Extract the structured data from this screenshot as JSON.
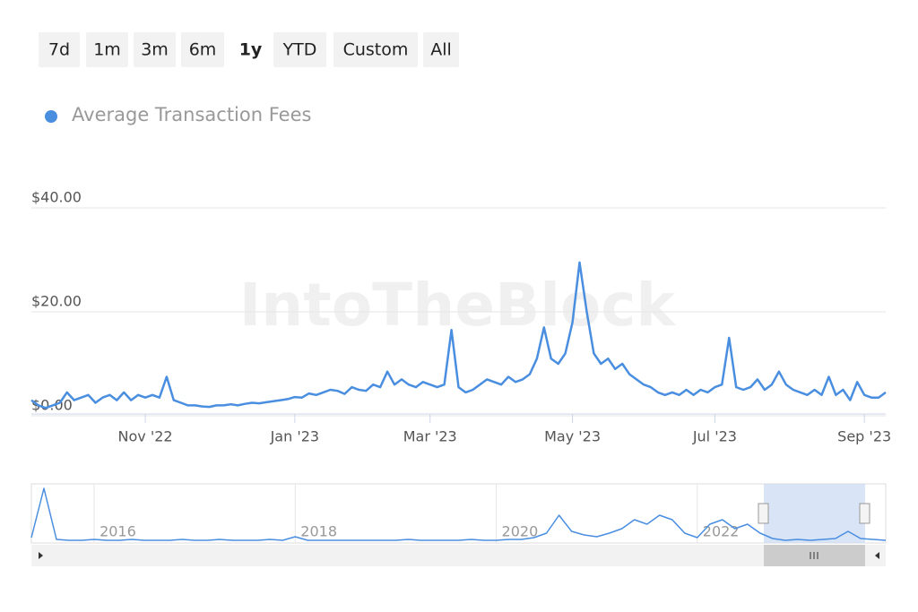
{
  "range_selector": {
    "buttons": [
      "7d",
      "1m",
      "3m",
      "6m",
      "1y",
      "YTD",
      "Custom",
      "All"
    ],
    "selected": 4
  },
  "watermark": "IntoTheBlock",
  "chart_data": {
    "type": "line",
    "series": [
      {
        "name": "Average Transaction Fees",
        "color": "#4a8ee0",
        "values": [
          3,
          2,
          1.5,
          2,
          2.5,
          4.5,
          3,
          3.5,
          4,
          2.5,
          3.5,
          4,
          3,
          4.5,
          3,
          4,
          3.5,
          4,
          3.5,
          7.5,
          3,
          2.5,
          2,
          2,
          1.8,
          1.7,
          2,
          2,
          2.2,
          2,
          2.3,
          2.5,
          2.4,
          2.6,
          2.8,
          3,
          3.2,
          3.6,
          3.5,
          4.3,
          4,
          4.5,
          5,
          4.8,
          4.2,
          5.5,
          5,
          4.8,
          6,
          5.5,
          8.5,
          6,
          7,
          6,
          5.5,
          6.5,
          6,
          5.5,
          6,
          16.5,
          5.5,
          4.5,
          5,
          6,
          7,
          6.5,
          6,
          7.5,
          6.5,
          7,
          8,
          11,
          17,
          11,
          10,
          12,
          18,
          29.5,
          20,
          12,
          10,
          11,
          9,
          10,
          8,
          7,
          6,
          5.5,
          4.5,
          4,
          4.5,
          4,
          5,
          4,
          5,
          4.5,
          5.5,
          6,
          15,
          5.5,
          5,
          5.5,
          7,
          5,
          6,
          8.5,
          6,
          5,
          4.5,
          4,
          5,
          4,
          7.5,
          4,
          5,
          3,
          6.5,
          4,
          3.5,
          3.5,
          4.5
        ]
      }
    ],
    "categories": [
      null,
      null,
      null,
      null,
      null,
      null,
      null,
      null,
      null,
      null,
      null,
      null,
      null,
      null,
      null,
      null,
      "Nov '22",
      null,
      null,
      null,
      null,
      null,
      null,
      null,
      null,
      null,
      null,
      null,
      null,
      null,
      null,
      null,
      null,
      null,
      null,
      null,
      null,
      "Jan '23",
      null,
      null,
      null,
      null,
      null,
      null,
      null,
      null,
      null,
      null,
      null,
      null,
      null,
      null,
      null,
      null,
      null,
      null,
      "Mar '23",
      null,
      null,
      null,
      null,
      null,
      null,
      null,
      null,
      null,
      null,
      null,
      null,
      null,
      null,
      null,
      null,
      null,
      null,
      null,
      "May '23",
      null,
      null,
      null,
      null,
      null,
      null,
      null,
      null,
      null,
      null,
      null,
      null,
      null,
      null,
      null,
      null,
      null,
      null,
      null,
      "Jul '23",
      null,
      null,
      null,
      null,
      null,
      null,
      null,
      null,
      null,
      null,
      null,
      null,
      null,
      null,
      null,
      null,
      null,
      null,
      null,
      null,
      "Sep '23",
      null,
      null,
      null
    ],
    "ylim": [
      0,
      40
    ],
    "yticks": [
      {
        "value": 0,
        "label": "$0.00"
      },
      {
        "value": 20,
        "label": "$20.00"
      },
      {
        "value": 40,
        "label": "$40.00"
      }
    ],
    "grid": true,
    "navigator": {
      "type": "line",
      "color": "#4a8ee0",
      "values": [
        5,
        60,
        3,
        2,
        2,
        3,
        2,
        2,
        3,
        2,
        2,
        2,
        3,
        2,
        2,
        3,
        2,
        2,
        2,
        3,
        2,
        6,
        2,
        2,
        2,
        2,
        2,
        2,
        2,
        2,
        3,
        2,
        2,
        2,
        2,
        3,
        2,
        2,
        3,
        3,
        5,
        10,
        30,
        12,
        8,
        6,
        10,
        15,
        25,
        20,
        30,
        25,
        10,
        5,
        20,
        25,
        15,
        20,
        10,
        4,
        2,
        3,
        2,
        3,
        4,
        12,
        4,
        3,
        2
      ],
      "categories": [
        null,
        null,
        null,
        null,
        null,
        "2016",
        null,
        null,
        null,
        null,
        null,
        null,
        null,
        null,
        null,
        null,
        null,
        null,
        null,
        null,
        null,
        "2018",
        null,
        null,
        null,
        null,
        null,
        null,
        null,
        null,
        null,
        null,
        null,
        null,
        null,
        null,
        null,
        "2020",
        null,
        null,
        null,
        null,
        null,
        null,
        null,
        null,
        null,
        null,
        null,
        null,
        null,
        null,
        null,
        "2022",
        null,
        null,
        null,
        null,
        null,
        null,
        null,
        null,
        null,
        null,
        null,
        null,
        null,
        null,
        null
      ],
      "ylim": [
        0,
        65
      ]
    }
  }
}
